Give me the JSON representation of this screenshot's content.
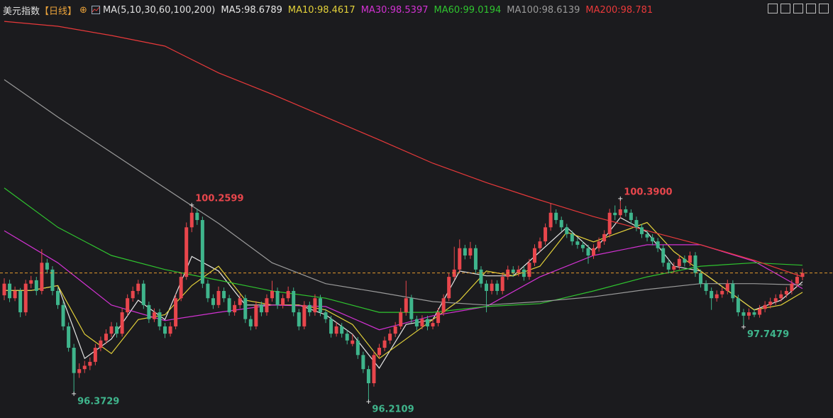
{
  "chart_data": {
    "type": "candlestick",
    "title": "美元指数",
    "subtitle": "【日线】",
    "indicator": "MA(5,10,30,60,100,200)",
    "up_color": "#e8464c",
    "down_color": "#3fb58c",
    "ylim": [
      95.874,
      104.48
    ],
    "ohlc": [
      [
        98.4,
        98.75,
        98.3,
        98.64
      ],
      [
        98.64,
        98.72,
        98.26,
        98.34
      ],
      [
        98.34,
        98.58,
        98.28,
        98.49
      ],
      [
        98.49,
        98.55,
        97.95,
        98.05
      ],
      [
        98.05,
        98.72,
        97.98,
        98.64
      ],
      [
        98.64,
        98.8,
        98.55,
        98.71
      ],
      [
        98.71,
        98.78,
        98.4,
        98.49
      ],
      [
        98.49,
        99.35,
        98.42,
        99.07
      ],
      [
        99.07,
        99.15,
        98.85,
        98.93
      ],
      [
        98.93,
        99.0,
        98.4,
        98.49
      ],
      [
        98.49,
        98.56,
        98.12,
        98.2
      ],
      [
        98.2,
        98.28,
        97.68,
        97.76
      ],
      [
        97.76,
        97.84,
        97.24,
        97.32
      ],
      [
        97.32,
        97.4,
        96.3729,
        96.8
      ],
      [
        96.8,
        97.0,
        96.7,
        96.88
      ],
      [
        96.88,
        97.05,
        96.8,
        96.95
      ],
      [
        96.95,
        97.12,
        96.86,
        97.03
      ],
      [
        97.03,
        97.4,
        96.96,
        97.32
      ],
      [
        97.32,
        97.55,
        97.25,
        97.47
      ],
      [
        97.47,
        97.7,
        97.4,
        97.61
      ],
      [
        97.61,
        97.85,
        97.54,
        97.76
      ],
      [
        97.76,
        97.84,
        97.53,
        97.61
      ],
      [
        97.61,
        98.14,
        97.55,
        98.05
      ],
      [
        98.05,
        98.42,
        97.98,
        98.34
      ],
      [
        98.34,
        98.58,
        98.27,
        98.49
      ],
      [
        98.49,
        98.72,
        98.42,
        98.64
      ],
      [
        98.64,
        98.71,
        98.12,
        98.2
      ],
      [
        98.2,
        98.27,
        97.83,
        97.91
      ],
      [
        97.91,
        98.13,
        97.85,
        98.05
      ],
      [
        98.05,
        98.12,
        97.68,
        97.76
      ],
      [
        97.76,
        97.83,
        97.52,
        97.61
      ],
      [
        97.61,
        97.85,
        97.55,
        97.76
      ],
      [
        97.76,
        98.42,
        97.7,
        98.34
      ],
      [
        98.34,
        98.86,
        98.28,
        98.78
      ],
      [
        98.78,
        99.9,
        98.72,
        99.8
      ],
      [
        99.8,
        100.2599,
        99.7,
        100.1
      ],
      [
        100.1,
        100.18,
        99.85,
        99.95
      ],
      [
        99.95,
        100.02,
        98.55,
        98.64
      ],
      [
        98.64,
        98.72,
        98.26,
        98.34
      ],
      [
        98.34,
        98.42,
        98.12,
        98.2
      ],
      [
        98.2,
        98.58,
        98.14,
        98.49
      ],
      [
        98.49,
        98.56,
        98.26,
        98.34
      ],
      [
        98.34,
        98.41,
        97.98,
        98.05
      ],
      [
        98.05,
        98.28,
        97.98,
        98.2
      ],
      [
        98.2,
        98.42,
        98.13,
        98.34
      ],
      [
        98.34,
        98.41,
        97.83,
        97.91
      ],
      [
        97.91,
        97.98,
        97.68,
        97.76
      ],
      [
        97.76,
        98.28,
        97.7,
        98.2
      ],
      [
        98.2,
        98.27,
        97.97,
        98.05
      ],
      [
        98.05,
        98.42,
        97.98,
        98.34
      ],
      [
        98.34,
        98.7,
        98.27,
        98.49
      ],
      [
        98.49,
        98.56,
        98.12,
        98.2
      ],
      [
        98.2,
        98.42,
        98.13,
        98.34
      ],
      [
        98.34,
        98.58,
        98.27,
        98.49
      ],
      [
        98.49,
        98.56,
        97.97,
        98.05
      ],
      [
        98.05,
        98.12,
        97.68,
        97.76
      ],
      [
        97.76,
        98.28,
        97.7,
        98.2
      ],
      [
        98.2,
        98.27,
        97.97,
        98.05
      ],
      [
        98.05,
        98.42,
        97.98,
        98.34
      ],
      [
        98.34,
        98.41,
        97.97,
        98.05
      ],
      [
        98.05,
        98.12,
        97.83,
        97.91
      ],
      [
        97.91,
        97.98,
        97.53,
        97.61
      ],
      [
        97.61,
        97.84,
        97.55,
        97.76
      ],
      [
        97.76,
        97.83,
        97.53,
        97.61
      ],
      [
        97.61,
        97.68,
        97.39,
        97.47
      ],
      [
        97.4,
        97.6,
        97.35,
        97.47
      ],
      [
        97.47,
        97.54,
        97.09,
        97.17
      ],
      [
        97.17,
        97.24,
        96.8,
        96.88
      ],
      [
        96.88,
        96.95,
        96.2109,
        96.59
      ],
      [
        96.59,
        97.25,
        96.52,
        97.17
      ],
      [
        97.17,
        97.4,
        97.1,
        97.32
      ],
      [
        97.32,
        97.55,
        97.25,
        97.47
      ],
      [
        97.47,
        97.7,
        97.4,
        97.61
      ],
      [
        97.61,
        97.85,
        97.54,
        97.76
      ],
      [
        97.76,
        98.14,
        97.7,
        98.05
      ],
      [
        98.05,
        98.7,
        97.98,
        98.34
      ],
      [
        98.34,
        98.41,
        97.83,
        97.91
      ],
      [
        97.91,
        97.98,
        97.68,
        97.76
      ],
      [
        97.76,
        97.99,
        97.7,
        97.91
      ],
      [
        97.91,
        97.98,
        97.68,
        97.76
      ],
      [
        97.76,
        97.92,
        97.7,
        97.83
      ],
      [
        97.83,
        98.14,
        97.76,
        98.05
      ],
      [
        98.05,
        98.42,
        97.98,
        98.34
      ],
      [
        98.34,
        98.86,
        98.28,
        98.78
      ],
      [
        98.78,
        99.4,
        98.72,
        98.93
      ],
      [
        98.93,
        99.55,
        98.86,
        99.37
      ],
      [
        99.37,
        99.44,
        99.14,
        99.22
      ],
      [
        99.22,
        99.5,
        99.15,
        99.37
      ],
      [
        99.37,
        99.44,
        98.85,
        98.93
      ],
      [
        98.93,
        99.0,
        98.56,
        98.64
      ],
      [
        98.64,
        98.71,
        98.05,
        98.49
      ],
      [
        98.49,
        98.72,
        98.42,
        98.64
      ],
      [
        98.64,
        98.71,
        98.41,
        98.49
      ],
      [
        98.49,
        98.86,
        98.42,
        98.78
      ],
      [
        98.78,
        99.01,
        98.72,
        98.93
      ],
      [
        98.93,
        99.0,
        98.78,
        98.86
      ],
      [
        98.86,
        99.01,
        98.79,
        98.93
      ],
      [
        98.93,
        99.0,
        98.7,
        98.78
      ],
      [
        98.78,
        99.15,
        98.72,
        99.07
      ],
      [
        99.07,
        99.45,
        99.0,
        99.37
      ],
      [
        99.37,
        99.59,
        99.3,
        99.51
      ],
      [
        99.51,
        99.88,
        99.44,
        99.8
      ],
      [
        99.8,
        100.3,
        99.73,
        100.1
      ],
      [
        100.1,
        100.17,
        99.87,
        99.95
      ],
      [
        99.95,
        100.02,
        99.72,
        99.8
      ],
      [
        99.8,
        99.87,
        99.58,
        99.66
      ],
      [
        99.66,
        99.73,
        99.43,
        99.51
      ],
      [
        99.51,
        99.58,
        99.36,
        99.44
      ],
      [
        99.44,
        99.51,
        99.29,
        99.37
      ],
      [
        99.37,
        99.44,
        99.05,
        99.22
      ],
      [
        99.22,
        99.45,
        99.15,
        99.37
      ],
      [
        99.37,
        99.59,
        99.3,
        99.51
      ],
      [
        99.51,
        99.74,
        99.44,
        99.66
      ],
      [
        99.66,
        100.18,
        99.59,
        100.1
      ],
      [
        100.1,
        100.25,
        99.95,
        100.05
      ],
      [
        100.05,
        100.39,
        99.98,
        100.17
      ],
      [
        100.17,
        100.24,
        100.02,
        100.1
      ],
      [
        100.1,
        100.17,
        99.87,
        99.95
      ],
      [
        99.95,
        100.02,
        99.72,
        99.8
      ],
      [
        99.8,
        99.87,
        99.58,
        99.66
      ],
      [
        99.66,
        99.73,
        99.51,
        99.59
      ],
      [
        99.59,
        99.66,
        99.43,
        99.51
      ],
      [
        99.51,
        99.58,
        99.29,
        99.37
      ],
      [
        99.37,
        99.44,
        98.99,
        99.07
      ],
      [
        99.07,
        99.14,
        98.85,
        98.93
      ],
      [
        98.93,
        99.08,
        98.86,
        99.0
      ],
      [
        99.0,
        99.23,
        98.93,
        99.15
      ],
      [
        99.15,
        99.22,
        98.99,
        99.07
      ],
      [
        99.07,
        99.3,
        99.0,
        99.22
      ],
      [
        99.22,
        99.29,
        98.78,
        98.86
      ],
      [
        98.86,
        98.93,
        98.56,
        98.64
      ],
      [
        98.64,
        98.71,
        98.41,
        98.49
      ],
      [
        98.49,
        98.56,
        98.1,
        98.34
      ],
      [
        98.34,
        98.5,
        98.27,
        98.42
      ],
      [
        98.42,
        98.57,
        98.35,
        98.49
      ],
      [
        98.49,
        98.72,
        98.42,
        98.64
      ],
      [
        98.64,
        98.71,
        98.26,
        98.34
      ],
      [
        98.34,
        98.41,
        97.97,
        98.05
      ],
      [
        98.05,
        98.12,
        97.7479,
        97.98
      ],
      [
        97.98,
        98.13,
        97.9,
        98.05
      ],
      [
        98.05,
        98.12,
        97.95,
        98.0
      ],
      [
        98.0,
        98.2,
        97.94,
        98.12
      ],
      [
        98.12,
        98.28,
        98.05,
        98.2
      ],
      [
        98.2,
        98.35,
        98.13,
        98.27
      ],
      [
        98.27,
        98.42,
        98.2,
        98.34
      ],
      [
        98.34,
        98.5,
        98.27,
        98.42
      ],
      [
        98.42,
        98.57,
        98.35,
        98.49
      ],
      [
        98.49,
        98.72,
        98.42,
        98.64
      ],
      [
        98.64,
        98.86,
        98.57,
        98.78
      ],
      [
        98.78,
        98.95,
        98.71,
        98.86
      ]
    ],
    "series": [
      {
        "name": "MA5:98.6789",
        "color": "#e6e6e6",
        "x": [
          0,
          5,
          10,
          15,
          20,
          25,
          30,
          35,
          40,
          45,
          50,
          55,
          60,
          65,
          70,
          75,
          80,
          85,
          90,
          95,
          100,
          105,
          110,
          115,
          120,
          125,
          130,
          135,
          140,
          145,
          149
        ],
        "values": [
          98.5,
          98.5,
          98.6,
          97.1,
          97.5,
          98.3,
          97.9,
          99.2,
          98.9,
          98.2,
          98.2,
          98.2,
          98.0,
          97.6,
          96.9,
          97.8,
          97.9,
          98.9,
          98.8,
          98.8,
          99.3,
          99.8,
          99.3,
          100.0,
          99.7,
          99.0,
          98.9,
          98.5,
          98.1,
          98.3,
          98.6789
        ]
      },
      {
        "name": "MA10:98.4617",
        "color": "#e3d13a",
        "x": [
          0,
          5,
          10,
          15,
          20,
          25,
          30,
          35,
          40,
          45,
          50,
          55,
          60,
          65,
          70,
          75,
          80,
          85,
          90,
          95,
          100,
          105,
          110,
          115,
          120,
          125,
          130,
          135,
          140,
          145,
          149
        ],
        "values": [
          98.5,
          98.5,
          98.6,
          97.6,
          97.2,
          97.9,
          98.0,
          98.6,
          99.0,
          98.3,
          98.2,
          98.2,
          98.1,
          97.8,
          97.1,
          97.5,
          97.9,
          98.3,
          98.9,
          98.8,
          99.0,
          99.7,
          99.5,
          99.7,
          99.9,
          99.3,
          98.9,
          98.5,
          98.1,
          98.2,
          98.4617
        ]
      },
      {
        "name": "MA30:98.5397",
        "color": "#d232d2",
        "x": [
          0,
          10,
          20,
          30,
          40,
          50,
          60,
          70,
          80,
          90,
          100,
          110,
          120,
          130,
          140,
          149
        ],
        "values": [
          99.73,
          99.07,
          98.2,
          97.88,
          98.05,
          98.2,
          98.17,
          97.69,
          97.98,
          98.17,
          98.78,
          99.22,
          99.44,
          99.44,
          99.1,
          98.5397
        ]
      },
      {
        "name": "MA60:99.0194",
        "color": "#2fc42f",
        "x": [
          0,
          10,
          20,
          30,
          40,
          50,
          60,
          70,
          80,
          90,
          100,
          110,
          120,
          130,
          140,
          149
        ],
        "values": [
          100.61,
          99.8,
          99.22,
          98.93,
          98.71,
          98.49,
          98.34,
          98.05,
          98.05,
          98.17,
          98.23,
          98.49,
          98.78,
          99.0,
          99.07,
          99.0194
        ]
      },
      {
        "name": "MA100:98.6139",
        "color": "#9a9a9a",
        "x": [
          0,
          10,
          20,
          30,
          40,
          50,
          60,
          70,
          80,
          90,
          100,
          110,
          120,
          130,
          140,
          149
        ],
        "values": [
          102.84,
          102.07,
          101.34,
          100.61,
          99.88,
          99.07,
          98.64,
          98.46,
          98.27,
          98.2,
          98.27,
          98.37,
          98.52,
          98.64,
          98.64,
          98.6139
        ]
      },
      {
        "name": "MA200:98.781",
        "color": "#e8393a",
        "x": [
          0,
          10,
          20,
          30,
          40,
          50,
          60,
          70,
          80,
          90,
          100,
          110,
          120,
          130,
          140,
          149
        ],
        "values": [
          104.04,
          103.94,
          103.75,
          103.53,
          102.98,
          102.54,
          102.07,
          101.6,
          101.12,
          100.72,
          100.36,
          100.02,
          99.73,
          99.44,
          99.12,
          98.781
        ]
      }
    ],
    "annotations": [
      100.2599,
      96.3729,
      96.2109,
      {
        "value": 100.39,
        "label": "100.3900"
      },
      97.7479
    ]
  }
}
